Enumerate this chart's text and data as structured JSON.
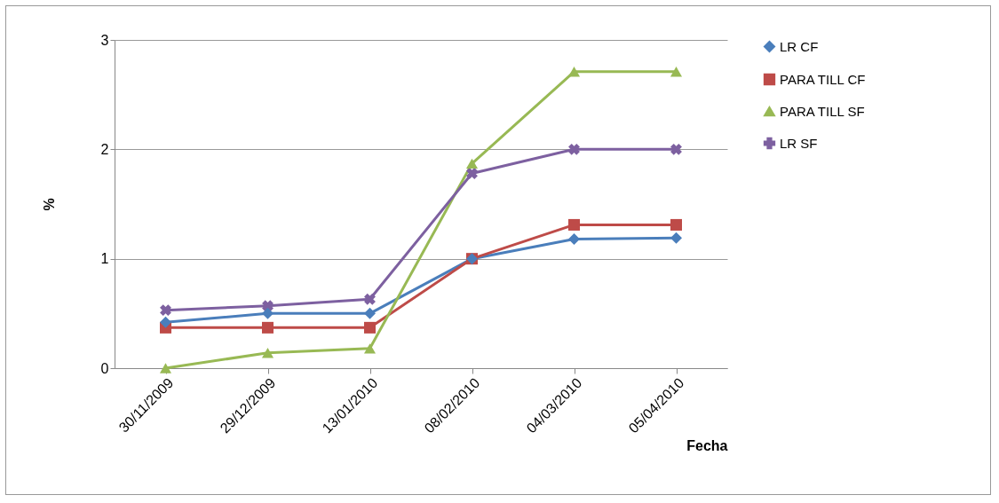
{
  "chart_data": {
    "type": "line",
    "xlabel": "Fecha",
    "ylabel": "%",
    "categories": [
      "30/11/2009",
      "29/12/2009",
      "13/01/2010",
      "08/02/2010",
      "04/03/2010",
      "05/04/2010"
    ],
    "series": [
      {
        "name": "LR CF",
        "color": "#4a7ebb",
        "marker": "diamond",
        "values": [
          0.42,
          0.5,
          0.5,
          1.0,
          1.18,
          1.19
        ]
      },
      {
        "name": "PARA TILL CF",
        "color": "#be4b48",
        "marker": "square",
        "values": [
          0.37,
          0.37,
          0.37,
          1.0,
          1.31,
          1.31
        ]
      },
      {
        "name": "PARA TILL SF",
        "color": "#98b954",
        "marker": "triangle",
        "values": [
          0,
          0.14,
          0.18,
          1.87,
          2.71,
          2.71
        ]
      },
      {
        "name": "LR SF",
        "color": "#7d60a0",
        "marker": "cross",
        "values": [
          0.53,
          0.57,
          0.63,
          1.78,
          2.0,
          2.0
        ]
      }
    ],
    "ylim": [
      0,
      3
    ],
    "yticks": [
      0,
      1,
      2,
      3
    ],
    "grid": "y",
    "legend": "right",
    "line_style": "solid"
  }
}
